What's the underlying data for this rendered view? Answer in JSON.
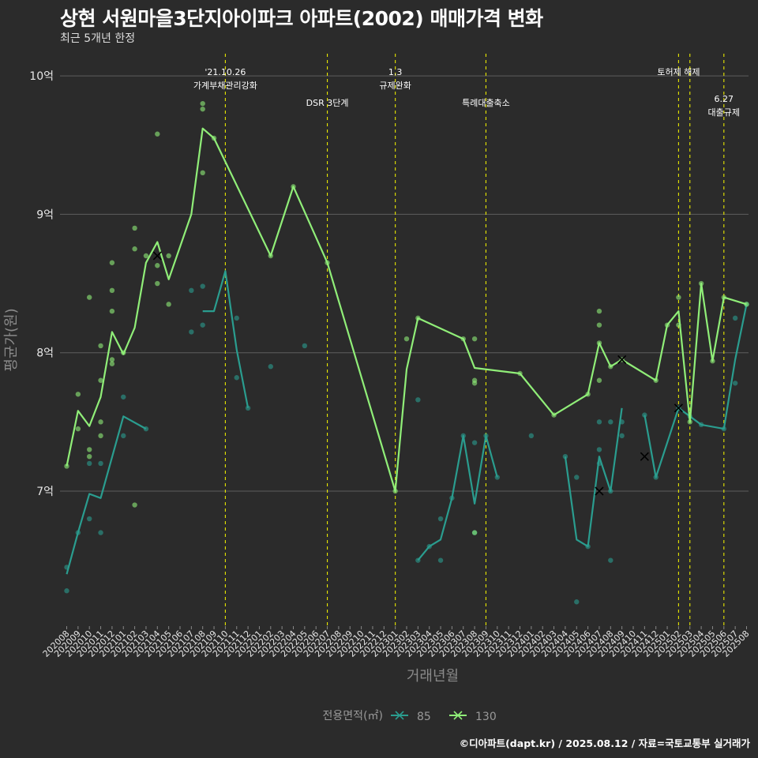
{
  "chart_data": {
    "type": "line",
    "title": "상현 서원마을3단지아이파크 아파트(2002) 매매가격 변화",
    "subtitle": "최근 5개년 한정",
    "xlabel": "거래년월",
    "ylabel": "평균가(원)",
    "caption": "©디아파트(dapt.kr) / 2025.08.12 / 자료=국토교통부 실거래가",
    "ylim": [
      6.0,
      10.15
    ],
    "yticks": [
      {
        "value": 7,
        "label": "7억"
      },
      {
        "value": 8,
        "label": "8억"
      },
      {
        "value": 9,
        "label": "9억"
      },
      {
        "value": 10,
        "label": "10억"
      }
    ],
    "grid": true,
    "categories": [
      "202008",
      "202009",
      "202010",
      "202011",
      "202012",
      "202101",
      "202102",
      "202103",
      "202104",
      "202105",
      "202106",
      "202107",
      "202108",
      "202109",
      "202110",
      "202111",
      "202112",
      "202201",
      "202202",
      "202203",
      "202204",
      "202205",
      "202206",
      "202207",
      "202208",
      "202209",
      "202210",
      "202211",
      "202212",
      "202301",
      "202302",
      "202303",
      "202304",
      "202305",
      "202306",
      "202307",
      "202308",
      "202309",
      "202310",
      "202311",
      "202312",
      "202401",
      "202402",
      "202403",
      "202404",
      "202405",
      "202406",
      "202407",
      "202408",
      "202409",
      "202410",
      "202411",
      "202412",
      "202501",
      "202502",
      "202503",
      "202504",
      "202505",
      "202506",
      "202507",
      "202508"
    ],
    "legend": {
      "title": "전용면적(㎡)",
      "position": "bottom",
      "entries": [
        "85",
        "130"
      ]
    },
    "colors": {
      "85": "#2a9d8f",
      "130": "#90ee78",
      "vline": "#e8e800"
    },
    "series": [
      {
        "name": "85",
        "segments": [
          [
            [
              "202008",
              6.4
            ],
            [
              "202009",
              6.7
            ],
            [
              "202010",
              6.98
            ],
            [
              "202011",
              6.95
            ],
            [
              "202101",
              7.54
            ],
            [
              "202103",
              7.45
            ]
          ],
          [
            [
              "202108",
              8.3
            ],
            [
              "202109",
              8.3
            ],
            [
              "202110",
              8.59
            ],
            [
              "202111",
              8.02
            ],
            [
              "202112",
              7.6
            ]
          ],
          [
            [
              "202303",
              6.5
            ],
            [
              "202304",
              6.6
            ],
            [
              "202305",
              6.65
            ],
            [
              "202306",
              6.95
            ],
            [
              "202307",
              7.4
            ],
            [
              "202308",
              6.91
            ],
            [
              "202309",
              7.4
            ],
            [
              "202310",
              7.1
            ]
          ],
          [
            [
              "202404",
              7.25
            ],
            [
              "202405",
              6.65
            ],
            [
              "202406",
              6.6
            ],
            [
              "202407",
              7.25
            ],
            [
              "202408",
              7.0
            ],
            [
              "202409",
              7.6
            ]
          ],
          [
            [
              "202411",
              7.55
            ],
            [
              "202412",
              7.1
            ],
            [
              "202502",
              7.6
            ],
            [
              "202503",
              7.54
            ],
            [
              "202504",
              7.48
            ],
            [
              "202506",
              7.45
            ],
            [
              "202507",
              7.95
            ],
            [
              "202508",
              8.35
            ]
          ]
        ],
        "points": [
          [
            "202008",
            6.45
          ],
          [
            "202008",
            6.28
          ],
          [
            "202009",
            6.7
          ],
          [
            "202010",
            7.2
          ],
          [
            "202010",
            6.8
          ],
          [
            "202011",
            7.2
          ],
          [
            "202011",
            6.7
          ],
          [
            "202101",
            7.68
          ],
          [
            "202101",
            7.4
          ],
          [
            "202103",
            7.45
          ],
          [
            "202107",
            8.45
          ],
          [
            "202107",
            8.15
          ],
          [
            "202108",
            8.48
          ],
          [
            "202108",
            8.2
          ],
          [
            "202111",
            8.25
          ],
          [
            "202111",
            7.82
          ],
          [
            "202112",
            7.6
          ],
          [
            "202202",
            7.9
          ],
          [
            "202205",
            8.05
          ],
          [
            "202303",
            7.66
          ],
          [
            "202303",
            6.5
          ],
          [
            "202304",
            6.6
          ],
          [
            "202305",
            6.8
          ],
          [
            "202305",
            6.5
          ],
          [
            "202306",
            6.95
          ],
          [
            "202307",
            7.4
          ],
          [
            "202308",
            7.35
          ],
          [
            "202308",
            6.7
          ],
          [
            "202309",
            7.4
          ],
          [
            "202310",
            7.1
          ],
          [
            "202401",
            7.4
          ],
          [
            "202404",
            7.25
          ],
          [
            "202405",
            7.1
          ],
          [
            "202405",
            6.2
          ],
          [
            "202406",
            6.6
          ],
          [
            "202407",
            7.5
          ],
          [
            "202407",
            7.3
          ],
          [
            "202407",
            7.2
          ],
          [
            "202408",
            7.0
          ],
          [
            "202408",
            6.5
          ],
          [
            "202408",
            7.5
          ],
          [
            "202409",
            7.5
          ],
          [
            "202409",
            7.4
          ],
          [
            "202411",
            7.55
          ],
          [
            "202412",
            7.1
          ],
          [
            "202502",
            7.6
          ],
          [
            "202503",
            7.54
          ],
          [
            "202504",
            7.48
          ],
          [
            "202506",
            7.45
          ],
          [
            "202507",
            8.25
          ],
          [
            "202507",
            7.78
          ],
          [
            "202508",
            8.35
          ]
        ],
        "crosses": [
          [
            "202407",
            7.0
          ],
          [
            "202411",
            7.25
          ],
          [
            "202502",
            7.6
          ]
        ]
      },
      {
        "name": "130",
        "segments": [
          [
            [
              "202008",
              7.18
            ],
            [
              "202009",
              7.58
            ],
            [
              "202010",
              7.47
            ],
            [
              "202011",
              7.68
            ],
            [
              "202012",
              8.15
            ],
            [
              "202101",
              7.99
            ],
            [
              "202102",
              8.18
            ],
            [
              "202103",
              8.65
            ],
            [
              "202104",
              8.8
            ],
            [
              "202105",
              8.53
            ],
            [
              "202107",
              9.0
            ],
            [
              "202108",
              9.62
            ],
            [
              "202109",
              9.55
            ],
            [
              "202202",
              8.7
            ],
            [
              "202204",
              9.2
            ],
            [
              "202207",
              8.65
            ],
            [
              "202301",
              7.0
            ],
            [
              "202302",
              7.88
            ],
            [
              "202303",
              8.25
            ],
            [
              "202307",
              8.1
            ],
            [
              "202308",
              7.89
            ],
            [
              "202312",
              7.85
            ],
            [
              "202403",
              7.55
            ],
            [
              "202406",
              7.7
            ],
            [
              "202407",
              8.07
            ],
            [
              "202408",
              7.9
            ],
            [
              "202409",
              7.95
            ],
            [
              "202412",
              7.8
            ],
            [
              "202501",
              8.2
            ],
            [
              "202502",
              8.3
            ],
            [
              "202503",
              7.5
            ],
            [
              "202504",
              8.5
            ],
            [
              "202505",
              7.94
            ],
            [
              "202506",
              8.4
            ],
            [
              "202508",
              8.35
            ]
          ]
        ],
        "points": [
          [
            "202008",
            7.18
          ],
          [
            "202009",
            7.45
          ],
          [
            "202009",
            7.7
          ],
          [
            "202010",
            8.4
          ],
          [
            "202010",
            7.3
          ],
          [
            "202010",
            7.25
          ],
          [
            "202011",
            7.5
          ],
          [
            "202011",
            7.4
          ],
          [
            "202011",
            8.05
          ],
          [
            "202011",
            7.8
          ],
          [
            "202012",
            7.95
          ],
          [
            "202012",
            8.65
          ],
          [
            "202012",
            8.45
          ],
          [
            "202012",
            8.3
          ],
          [
            "202012",
            7.92
          ],
          [
            "202101",
            8.0
          ],
          [
            "202102",
            8.9
          ],
          [
            "202102",
            8.75
          ],
          [
            "202102",
            6.9
          ],
          [
            "202103",
            8.7
          ],
          [
            "202104",
            9.58
          ],
          [
            "202104",
            8.63
          ],
          [
            "202104",
            8.5
          ],
          [
            "202105",
            8.7
          ],
          [
            "202105",
            8.35
          ],
          [
            "202108",
            9.8
          ],
          [
            "202108",
            9.76
          ],
          [
            "202108",
            9.3
          ],
          [
            "202109",
            9.55
          ],
          [
            "202202",
            8.7
          ],
          [
            "202204",
            9.2
          ],
          [
            "202207",
            8.65
          ],
          [
            "202301",
            7.0
          ],
          [
            "202302",
            8.1
          ],
          [
            "202303",
            8.25
          ],
          [
            "202307",
            8.1
          ],
          [
            "202308",
            8.1
          ],
          [
            "202308",
            7.8
          ],
          [
            "202308",
            7.78
          ],
          [
            "202308",
            6.7
          ],
          [
            "202312",
            7.85
          ],
          [
            "202403",
            7.55
          ],
          [
            "202406",
            7.7
          ],
          [
            "202407",
            8.3
          ],
          [
            "202407",
            8.2
          ],
          [
            "202407",
            8.07
          ],
          [
            "202407",
            7.8
          ],
          [
            "202408",
            7.9
          ],
          [
            "202409",
            7.95
          ],
          [
            "202412",
            7.8
          ],
          [
            "202501",
            8.2
          ],
          [
            "202502",
            8.2
          ],
          [
            "202502",
            8.4
          ],
          [
            "202503",
            7.5
          ],
          [
            "202504",
            8.5
          ],
          [
            "202505",
            7.94
          ],
          [
            "202506",
            8.4
          ],
          [
            "202508",
            8.35
          ]
        ],
        "crosses": [
          [
            "202104",
            8.7
          ],
          [
            "202409",
            7.95
          ]
        ]
      }
    ],
    "events": [
      {
        "at": "202110",
        "lines": [
          "'21.10.26",
          "가계부채관리강화"
        ],
        "level": 0
      },
      {
        "at": "202207",
        "lines": [
          "DSR 3단계"
        ],
        "level": 1
      },
      {
        "at": "202301",
        "lines": [
          "1.3",
          "규제완화"
        ],
        "level": 0
      },
      {
        "at": "202309",
        "lines": [
          "특례대출축소"
        ],
        "level": 1
      },
      {
        "at": "202502",
        "lines": [
          "토허제 해제"
        ],
        "level": 0
      },
      {
        "at": "202503",
        "lines": [],
        "level": 0
      },
      {
        "at": "202506",
        "lines": [
          "6.27",
          "대출규제"
        ],
        "level": 1
      }
    ]
  }
}
